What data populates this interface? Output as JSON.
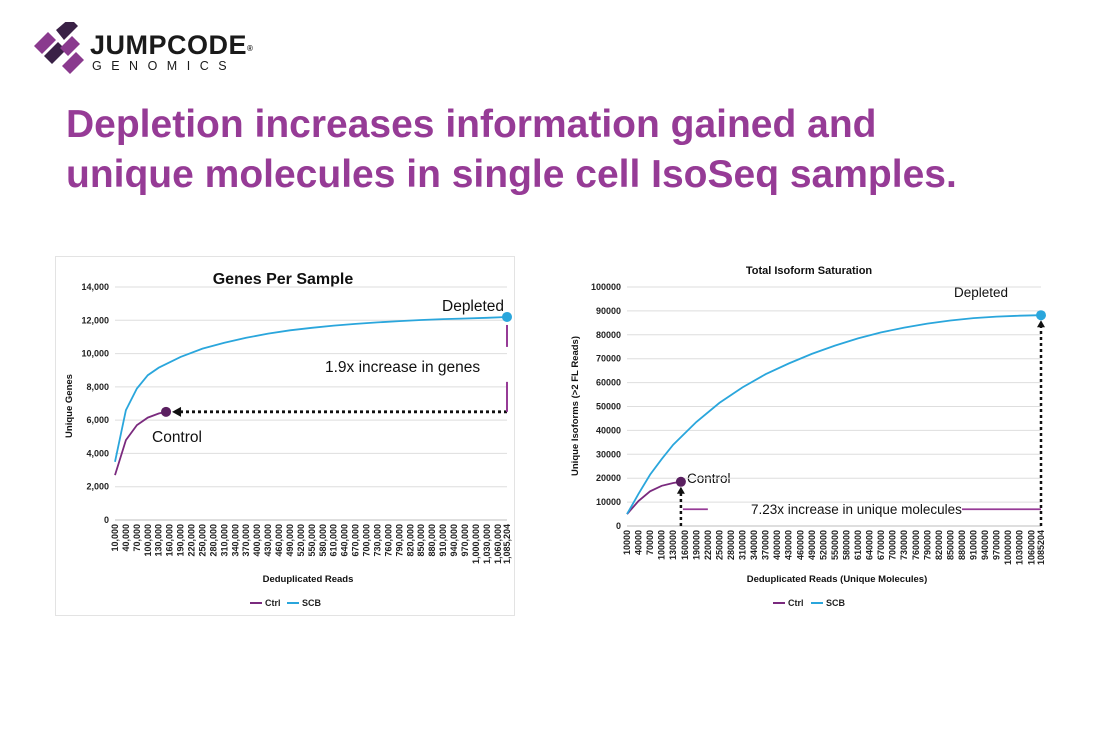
{
  "logo": {
    "brand": "JUMPCODE",
    "tm": "®",
    "sub": "GENOMICS"
  },
  "headline": {
    "line1": "Depletion increases information gained and",
    "line2": "unique molecules in single cell IsoSeq samples."
  },
  "colors": {
    "accent": "#963b96",
    "ctrl": "#7a2a7e",
    "scb": "#2aa6dc",
    "dot_ctrl": "#5a1f60"
  },
  "chart_data": [
    {
      "type": "line",
      "title": "Genes Per Sample",
      "xlabel": "Deduplicated Reads",
      "ylabel": "Unique Genes",
      "ylim": [
        0,
        14000
      ],
      "yticks": [
        "0",
        "2,000",
        "4,000",
        "6,000",
        "8,000",
        "10,000",
        "12,000",
        "14,000"
      ],
      "xticks": [
        "10,000",
        "40,000",
        "70,000",
        "100,000",
        "130,000",
        "160,000",
        "190,000",
        "220,000",
        "250,000",
        "280,000",
        "310,000",
        "340,000",
        "370,000",
        "400,000",
        "430,000",
        "460,000",
        "490,000",
        "520,000",
        "550,000",
        "580,000",
        "610,000",
        "640,000",
        "670,000",
        "700,000",
        "730,000",
        "760,000",
        "790,000",
        "820,000",
        "850,000",
        "880,000",
        "910,000",
        "940,000",
        "970,000",
        "1,000,000",
        "1,030,000",
        "1,060,000",
        "1,085,204"
      ],
      "grid": true,
      "legend": "bottom",
      "series": [
        {
          "name": "Ctrl",
          "x": [
            10000,
            40000,
            70000,
            100000,
            130000,
            150000
          ],
          "y": [
            2700,
            4800,
            5700,
            6150,
            6400,
            6500
          ]
        },
        {
          "name": "SCB",
          "x": [
            10000,
            40000,
            70000,
            100000,
            130000,
            190000,
            250000,
            310000,
            370000,
            430000,
            490000,
            550000,
            610000,
            670000,
            730000,
            790000,
            850000,
            910000,
            970000,
            1030000,
            1085204
          ],
          "y": [
            3500,
            6600,
            7900,
            8700,
            9150,
            9800,
            10300,
            10650,
            10950,
            11200,
            11400,
            11550,
            11680,
            11780,
            11870,
            11950,
            12020,
            12070,
            12110,
            12150,
            12200
          ]
        }
      ],
      "annotations": {
        "top": "Depleted",
        "middle": "1.9x increase in genes",
        "bottom": "Control"
      }
    },
    {
      "type": "line",
      "title": "Total Isoform Saturation",
      "xlabel": "Deduplicated Reads (Unique Molecules)",
      "ylabel": "Unique Isoforms (>2 FL Reads)",
      "ylim": [
        0,
        100000
      ],
      "yticks": [
        "0",
        "10000",
        "20000",
        "30000",
        "40000",
        "50000",
        "60000",
        "70000",
        "80000",
        "90000",
        "100000"
      ],
      "xticks": [
        "10000",
        "40000",
        "70000",
        "100000",
        "130000",
        "160000",
        "190000",
        "220000",
        "250000",
        "280000",
        "310000",
        "340000",
        "370000",
        "400000",
        "430000",
        "460000",
        "490000",
        "520000",
        "550000",
        "580000",
        "610000",
        "640000",
        "670000",
        "700000",
        "730000",
        "760000",
        "790000",
        "820000",
        "850000",
        "880000",
        "910000",
        "940000",
        "970000",
        "1000000",
        "1030000",
        "1060000",
        "1085204"
      ],
      "grid": true,
      "legend": "bottom",
      "series": [
        {
          "name": "Ctrl",
          "x": [
            10000,
            40000,
            70000,
            100000,
            130000,
            150000
          ],
          "y": [
            5000,
            10500,
            14500,
            16800,
            18000,
            18500
          ]
        },
        {
          "name": "SCB",
          "x": [
            10000,
            40000,
            70000,
            100000,
            130000,
            190000,
            250000,
            310000,
            370000,
            430000,
            490000,
            550000,
            610000,
            670000,
            730000,
            790000,
            850000,
            910000,
            970000,
            1030000,
            1085204
          ],
          "y": [
            5000,
            13500,
            21500,
            28000,
            34000,
            43500,
            51500,
            58000,
            63500,
            68000,
            72000,
            75500,
            78500,
            81000,
            83000,
            84700,
            86000,
            87000,
            87600,
            88000,
            88200
          ]
        }
      ],
      "annotations": {
        "top": "Depleted",
        "middle": "7.23x increase in unique molecules",
        "bottom": "Control"
      }
    }
  ]
}
